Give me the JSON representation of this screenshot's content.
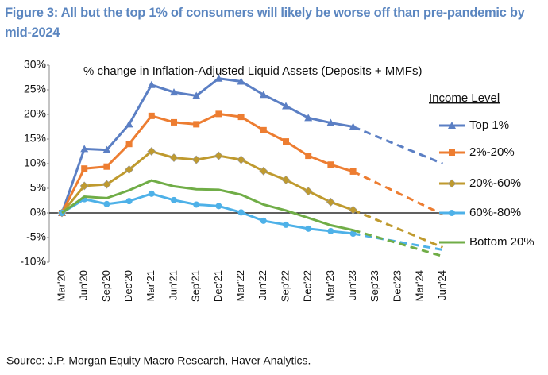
{
  "chart_data": {
    "type": "line",
    "title": "Figure 3: All but the top 1% of consumers will likely be worse off than pre-pandemic by mid-2024",
    "subtitle": "% change in Inflation-Adjusted Liquid Assets (Deposits + MMFs)",
    "legend_title": "Income Level",
    "source": "Source: J.P. Morgan Equity Macro Research, Haver Analytics.",
    "categories": [
      "Mar'20",
      "Jun'20",
      "Sep'20",
      "Dec'20",
      "Mar'21",
      "Jun'21",
      "Sep'21",
      "Dec'21",
      "Mar'22",
      "Jun'22",
      "Sep'22",
      "Dec'22",
      "Mar'23",
      "Jun'23",
      "Sep'23",
      "Dec'23",
      "Mar'24",
      "Jun'24"
    ],
    "forecast_start": "Jun'23",
    "ylim": [
      -10,
      30
    ],
    "yticks": [
      {
        "value": -10,
        "label": "-10%"
      },
      {
        "value": -5,
        "label": "-5%"
      },
      {
        "value": 0,
        "label": "0%"
      },
      {
        "value": 5,
        "label": "5%"
      },
      {
        "value": 10,
        "label": "10%"
      },
      {
        "value": 15,
        "label": "15%"
      },
      {
        "value": 20,
        "label": "20%"
      },
      {
        "value": 25,
        "label": "25%"
      },
      {
        "value": 30,
        "label": "30%"
      }
    ],
    "grid": false,
    "legend": "right",
    "series": [
      {
        "name": "Top 1%",
        "color": "#5b7fc4",
        "marker": "triangle",
        "values": [
          0,
          13,
          12.8,
          18,
          26,
          24.5,
          23.8,
          27.3,
          26.7,
          24,
          21.7,
          19.3,
          18.3,
          17.5,
          null,
          null,
          null,
          10
        ]
      },
      {
        "name": "2%-20%",
        "color": "#ed7d31",
        "marker": "square",
        "values": [
          0,
          9,
          9.4,
          14,
          19.7,
          18.4,
          18,
          20.1,
          19.5,
          16.8,
          14.5,
          11.6,
          9.8,
          8.4,
          null,
          null,
          null,
          -0.3
        ]
      },
      {
        "name": "20%-60%",
        "color": "#bf9a2e",
        "marker": "diamond",
        "values": [
          0,
          5.5,
          5.8,
          8.8,
          12.5,
          11.2,
          10.8,
          11.6,
          10.8,
          8.5,
          6.7,
          4.4,
          2.2,
          0.6,
          null,
          null,
          null,
          -7
        ]
      },
      {
        "name": "60%-80%",
        "color": "#4eb1e8",
        "marker": "circle",
        "values": [
          0,
          2.8,
          1.8,
          2.4,
          3.9,
          2.6,
          1.7,
          1.4,
          0.1,
          -1.6,
          -2.4,
          -3.2,
          -3.7,
          -4.2,
          null,
          null,
          null,
          -7.5
        ]
      },
      {
        "name": "Bottom 20%",
        "color": "#70ad47",
        "values": [
          0,
          3.3,
          3,
          4.6,
          6.6,
          5.4,
          4.8,
          4.7,
          3.7,
          1.7,
          0.5,
          -1,
          -2.5,
          -3.5,
          null,
          null,
          null,
          -8.8
        ]
      }
    ]
  }
}
